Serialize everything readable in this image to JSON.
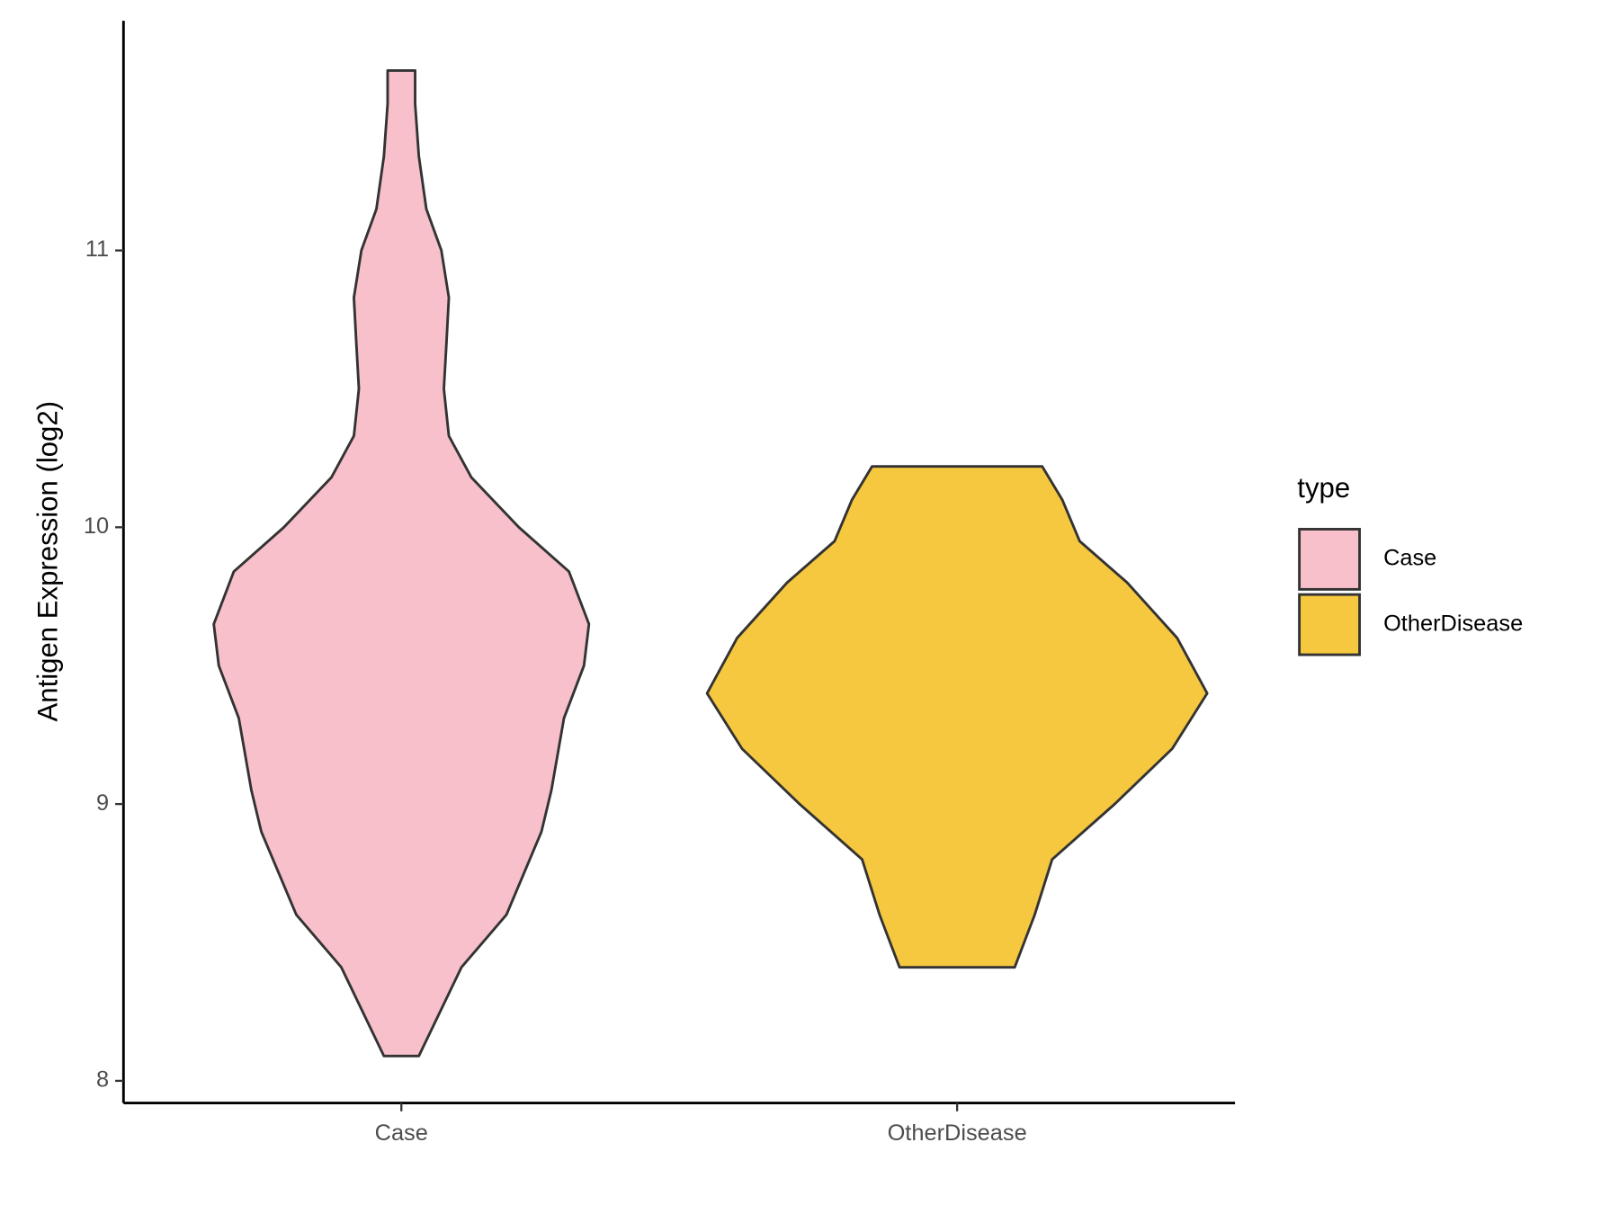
{
  "chart_data": {
    "type": "violin",
    "ylabel": "Antigen Expression (log2)",
    "legend_title": "type",
    "categories": [
      "Case",
      "OtherDisease"
    ],
    "series": [
      {
        "name": "Case",
        "color": "#f7c0cb",
        "y": [
          8.09,
          8.41,
          8.6,
          8.9,
          9.05,
          9.31,
          9.5,
          9.65,
          9.84,
          10.0,
          10.18,
          10.33,
          10.5,
          10.66,
          10.83,
          11.0,
          11.15,
          11.34,
          11.53,
          11.65
        ],
        "widths": [
          0.07,
          0.24,
          0.42,
          0.56,
          0.6,
          0.65,
          0.73,
          0.75,
          0.67,
          0.47,
          0.28,
          0.19,
          0.17,
          0.18,
          0.19,
          0.16,
          0.1,
          0.07,
          0.055,
          0.055
        ]
      },
      {
        "name": "OtherDisease",
        "color": "#f6c83f",
        "y": [
          8.41,
          8.6,
          8.8,
          9.0,
          9.2,
          9.4,
          9.6,
          9.8,
          9.95,
          10.1,
          10.22
        ],
        "widths": [
          0.23,
          0.31,
          0.38,
          0.63,
          0.86,
          1.0,
          0.88,
          0.68,
          0.49,
          0.42,
          0.34
        ]
      }
    ],
    "ylim": [
      7.92,
      11.83
    ],
    "yticks": [
      8,
      9,
      10,
      11
    ]
  }
}
